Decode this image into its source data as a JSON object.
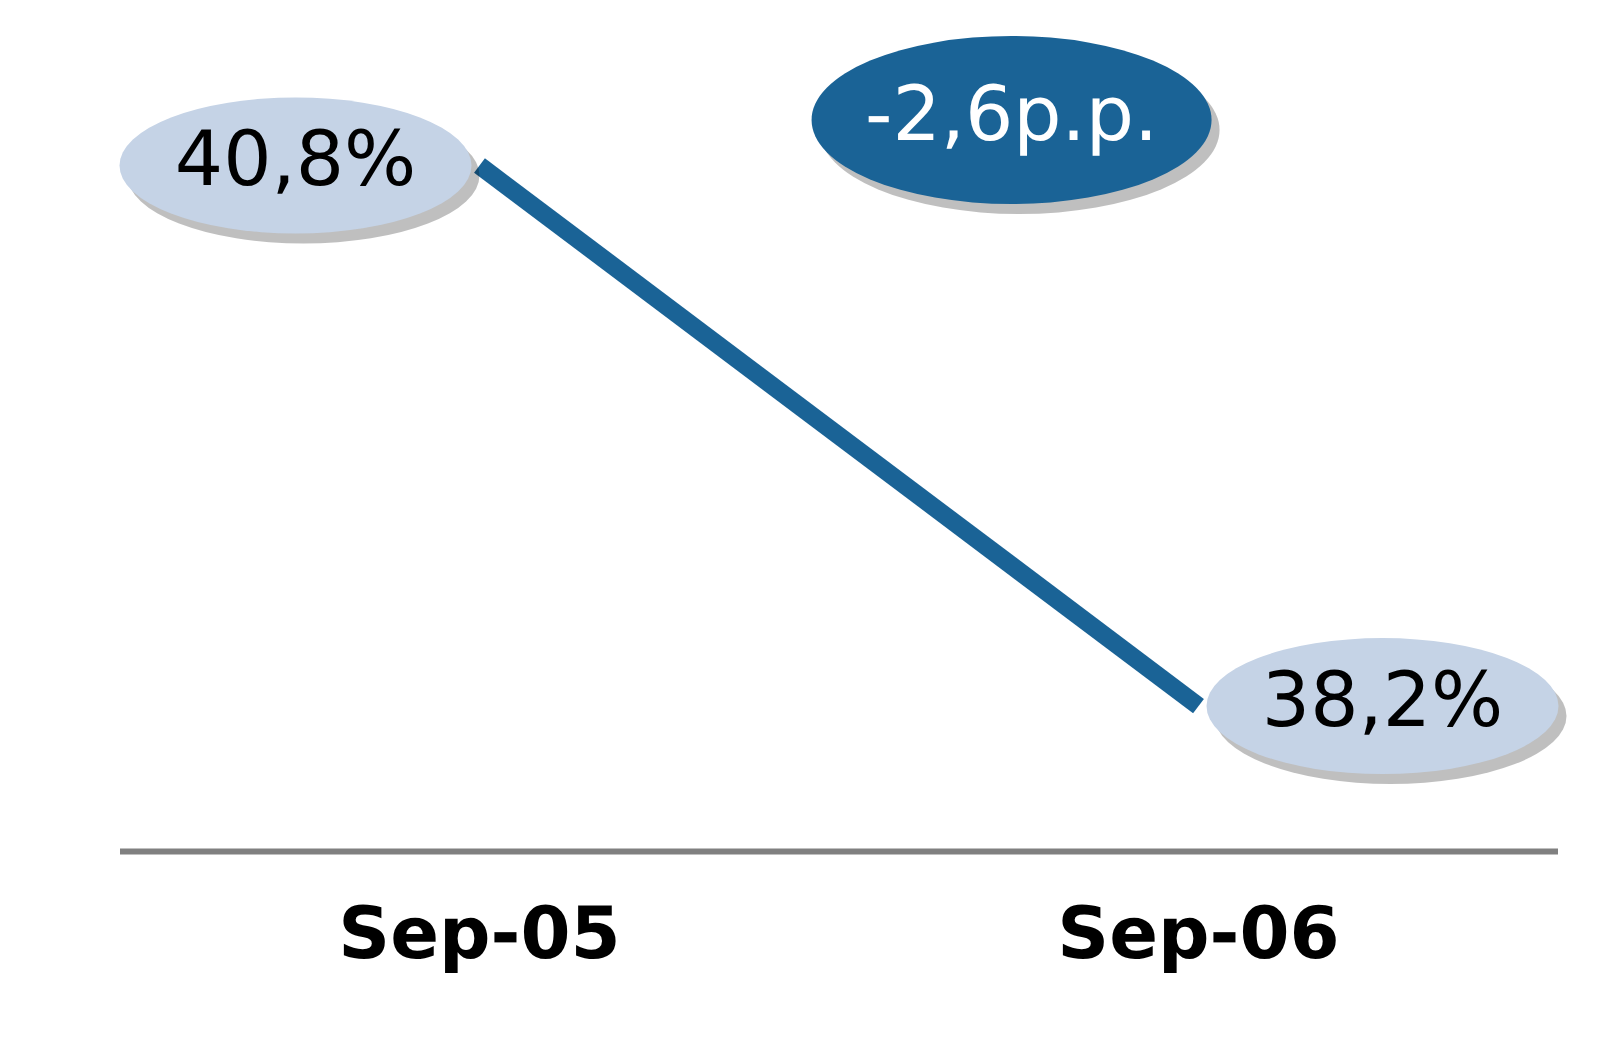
{
  "chart_data": {
    "type": "line",
    "categories": [
      "Sep-05",
      "Sep-06"
    ],
    "series": [
      {
        "color": "#1a6396",
        "values": [
          40.8,
          38.2
        ],
        "value_labels": [
          "40,8%",
          "38,2%"
        ]
      }
    ],
    "tick_labels": "x",
    "grid": false,
    "legend": false,
    "marker": "none",
    "line_style": "solid",
    "annotations": [
      "-2,6p.p."
    ]
  }
}
